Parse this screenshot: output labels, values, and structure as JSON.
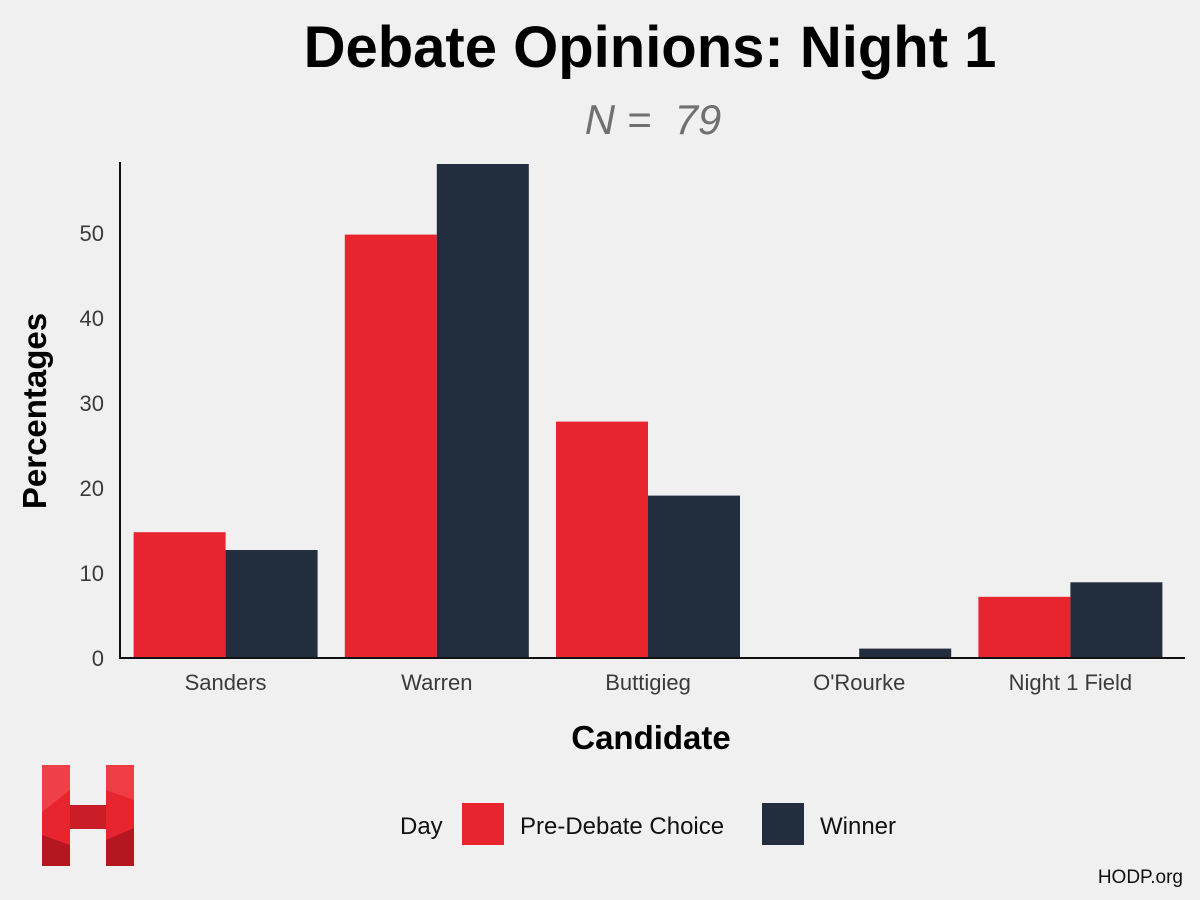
{
  "chart_data": {
    "type": "bar",
    "title": "Debate Opinions: Night 1",
    "subtitle": "N =  79",
    "xlabel": "Candidate",
    "ylabel": "Percentages",
    "categories": [
      "Sanders",
      "Warren",
      "Buttigieg",
      "O'Rourke",
      "Night 1 Field"
    ],
    "series": [
      {
        "name": "Pre-Debate Choice",
        "color": "#e8242f",
        "values": [
          14.8,
          49.8,
          27.8,
          0,
          7.2
        ]
      },
      {
        "name": "Winner",
        "color": "#222d3e",
        "values": [
          12.7,
          58.1,
          19.1,
          1.1,
          8.9
        ]
      }
    ],
    "ylim": [
      0,
      58.1
    ],
    "yticks": [
      "0",
      "10",
      "20",
      "30",
      "40",
      "50"
    ],
    "legend": {
      "title": "Day",
      "placement": "bottom"
    },
    "grid": false
  },
  "branding": {
    "logo": "H",
    "logo_color": "#e8242f",
    "credit": "HODP.org"
  }
}
